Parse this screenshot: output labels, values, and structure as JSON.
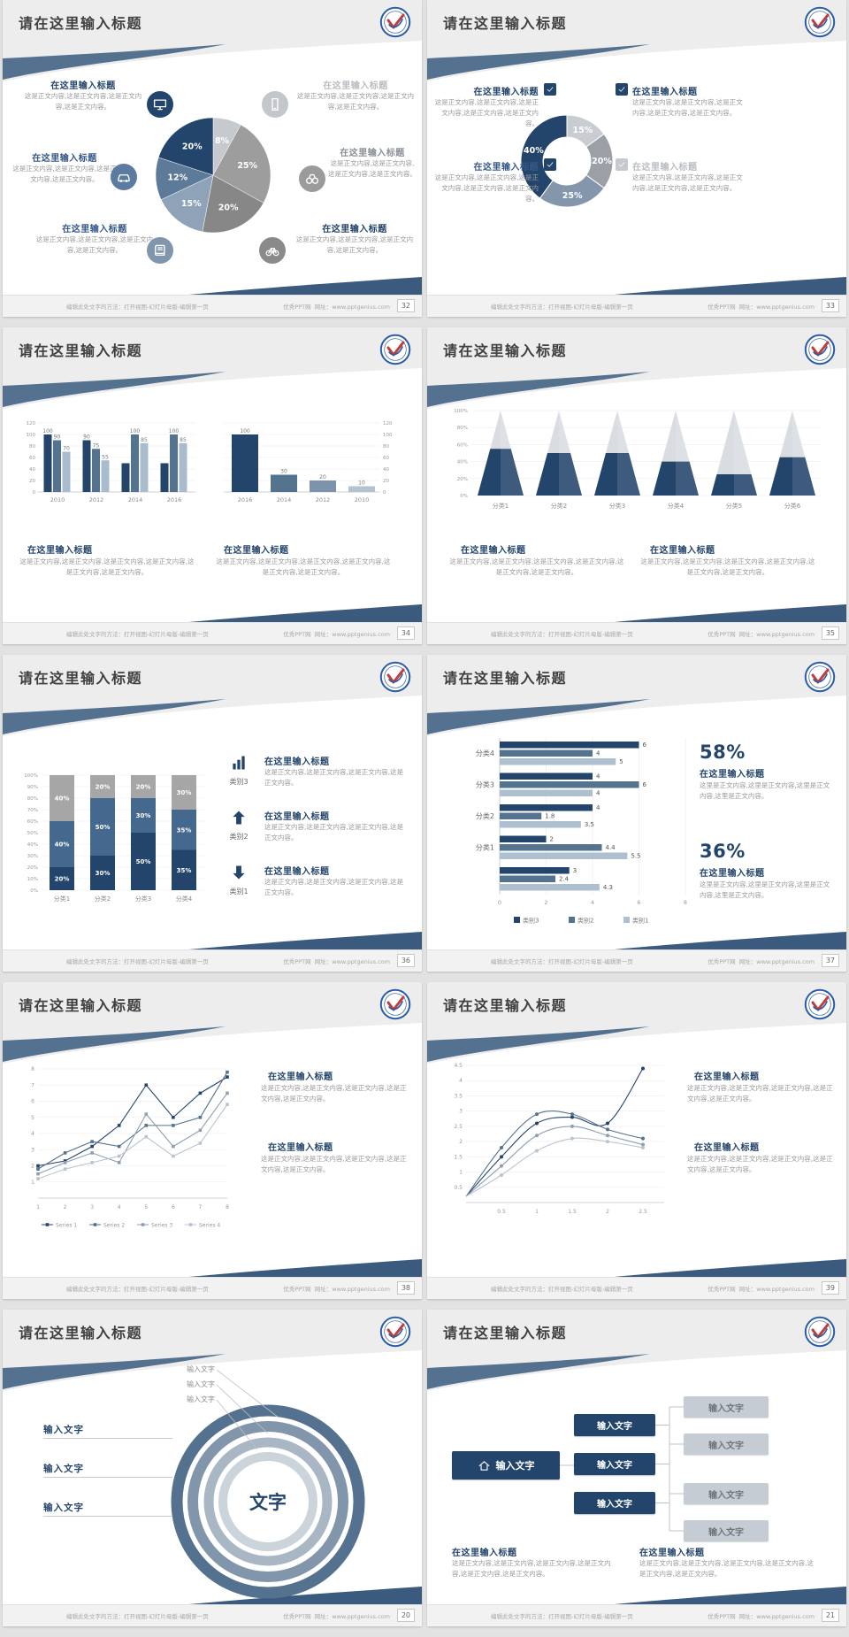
{
  "common": {
    "slide_title": "请在这里输入标题",
    "item_title": "在这里输入标题",
    "body2": "这是正文内容,这是正文内容,这是正文内容,这是正文内容。",
    "body25": "这是正文内容,这是正文内容,这是正文内容,这是正文内容,这是正文内容。",
    "body3": "这是正文内容,这是正文内容,这是正文内容,这是正文内容,这是正文内容,这是正文内容。",
    "body_here": "这里是正文内容,这里是正文内容,这里是正文内容,这里是正文内容。",
    "input_text": "输入文字",
    "center_text": "文字",
    "footer_left": "编辑此处文字的方法：打开视图-幻灯片母版-编辑第一页",
    "footer_site": "优秀PPT网",
    "footer_url": "网址：www.pptgenius.com"
  },
  "pages": [
    "32",
    "33",
    "34",
    "35",
    "36",
    "37",
    "38",
    "39",
    "20",
    "21"
  ],
  "colors": {
    "navy": "#24456b",
    "steel": "#54738f",
    "steel_light": "#8fa3b8",
    "ribbon": "#54728f",
    "wedge": "#3a5a7e",
    "gray_band": "#ededed",
    "pct_58": "58%",
    "pct_36": "36%"
  },
  "slide1": {
    "callouts": [
      {
        "icon": "monitor-icon",
        "icon_bg": "#24456b",
        "title_class": ""
      },
      {
        "icon": "car-icon",
        "icon_bg": "#5b7ba0",
        "title_class": "blue"
      },
      {
        "icon": "book-icon",
        "icon_bg": "#8096ac",
        "title_class": "blue"
      },
      {
        "icon": "phone-icon",
        "icon_bg": "#c3c7cc",
        "title_class": "muted"
      },
      {
        "icon": "binoculars-icon",
        "icon_bg": "#9b9b9b",
        "title_class": "mid"
      },
      {
        "icon": "bicycle-icon",
        "icon_bg": "#8a8a8a",
        "title_class": ""
      }
    ]
  },
  "slide2": {
    "items": [
      {
        "side": "left",
        "checkbox": "#24456b",
        "title_class": ""
      },
      {
        "side": "left",
        "checkbox": "#24456b",
        "title_class": "blue"
      },
      {
        "side": "right",
        "checkbox": "#24456b",
        "title_class": ""
      },
      {
        "side": "right",
        "checkbox": "#c6cacf",
        "title_class": "muted"
      }
    ]
  },
  "slide5": {
    "items": [
      {
        "icon": "bar-chart-icon",
        "label": "类别3"
      },
      {
        "icon": "arrow-up-icon",
        "label": "类别2"
      },
      {
        "icon": "arrow-down-icon",
        "label": "类别1"
      }
    ]
  },
  "slide6": {
    "pct1": "58%",
    "pct2": "36%"
  },
  "chart_data": [
    {
      "id": "pie",
      "slide": 1,
      "type": "pie",
      "labels": [
        "8%",
        "25%",
        "20%",
        "15%",
        "12%",
        "20%"
      ],
      "values": [
        8,
        25,
        20,
        15,
        12,
        20
      ],
      "colors": [
        "#c6cacf",
        "#9d9d9d",
        "#878787",
        "#8fa3b8",
        "#5d7a99",
        "#24456b"
      ],
      "start": "12-oclock",
      "direction": "clockwise"
    },
    {
      "id": "donut",
      "slide": 2,
      "type": "pie",
      "subtype": "donut",
      "inner_ratio": 0.52,
      "labels": [
        "15%",
        "20%",
        "25%",
        "40%"
      ],
      "values": [
        15,
        20,
        25,
        40
      ],
      "colors": [
        "#c9cdd2",
        "#9aa0a6",
        "#8496ab",
        "#24456b"
      ]
    },
    {
      "id": "grouped-bar",
      "slide": 3,
      "type": "bar",
      "categories": [
        "2010",
        "2012",
        "2014",
        "2016"
      ],
      "series": [
        {
          "name": "series-dark",
          "color": "#24456b",
          "values": [
            100,
            90,
            50,
            50
          ],
          "labels": [
            "100",
            "90",
            "",
            ""
          ]
        },
        {
          "name": "series-mid",
          "color": "#54738f",
          "values": [
            90,
            75,
            100,
            100
          ],
          "labels": [
            "90",
            "75",
            "100",
            "100"
          ]
        },
        {
          "name": "series-light",
          "color": "#a9bccd",
          "values": [
            70,
            55,
            85,
            85
          ],
          "labels": [
            "70",
            "55",
            "85",
            "85"
          ]
        }
      ],
      "ylim": [
        0,
        120
      ],
      "yticks": [
        0,
        20,
        40,
        60,
        80,
        100,
        120
      ],
      "grid": true
    },
    {
      "id": "simple-bar",
      "slide": 3,
      "type": "bar",
      "axis_side": "right",
      "categories": [
        "2016",
        "2014",
        "2012",
        "2010"
      ],
      "values": [
        100,
        30,
        20,
        10
      ],
      "labels": [
        "100",
        "30",
        "20",
        "10"
      ],
      "bar_colors": [
        "#24456b",
        "#54738f",
        "#7d93ab",
        "#b3c2d1"
      ],
      "ylim": [
        0,
        120
      ],
      "yticks": [
        0,
        20,
        40,
        60,
        80,
        100,
        120
      ],
      "grid": true
    },
    {
      "id": "cone",
      "slide": 4,
      "type": "area",
      "subtype": "cone-pyramid",
      "categories": [
        "分类1",
        "分类2",
        "分类3",
        "分类4",
        "分类5",
        "分类6"
      ],
      "dark_fraction": [
        0.55,
        0.5,
        0.5,
        0.4,
        0.25,
        0.45
      ],
      "yticks": [
        "0%",
        "20%",
        "40%",
        "60%",
        "80%",
        "100%"
      ],
      "colors": {
        "dark": "#24456b",
        "light": "#d7dbe0"
      }
    },
    {
      "id": "stacked-bar",
      "slide": 5,
      "type": "bar",
      "subtype": "stacked-percent",
      "categories": [
        "分类1",
        "分类2",
        "分类3",
        "分类4"
      ],
      "series": [
        {
          "name": "bottom",
          "color": "#24456b",
          "values": [
            20,
            30,
            50,
            35
          ]
        },
        {
          "name": "middle",
          "color": "#44688e",
          "values": [
            40,
            50,
            30,
            35
          ]
        },
        {
          "name": "top",
          "color": "#a6a6a6",
          "values": [
            40,
            20,
            20,
            30
          ]
        }
      ],
      "yticks": [
        "0%",
        "10%",
        "20%",
        "30%",
        "40%",
        "50%",
        "60%",
        "70%",
        "80%",
        "90%",
        "100%"
      ]
    },
    {
      "id": "h-bar",
      "slide": 6,
      "type": "bar",
      "subtype": "horizontal",
      "groups": [
        {
          "label": "分类4",
          "values": [
            6,
            4,
            5
          ]
        },
        {
          "label": "分类3",
          "values": [
            4,
            6,
            4
          ]
        },
        {
          "label": "分类2",
          "values": [
            4,
            1.8,
            3.5
          ]
        },
        {
          "label": "分类1",
          "values": [
            2,
            4.4,
            5.5
          ]
        },
        {
          "label": "",
          "values": [
            3,
            2.4,
            4.3
          ]
        }
      ],
      "series_colors": [
        "#24456b",
        "#54738f",
        "#aebfd0"
      ],
      "xticks": [
        0,
        2,
        4,
        6,
        8
      ],
      "legend": [
        "类别3",
        "类别2",
        "类别1"
      ],
      "legend_position": "bottom"
    },
    {
      "id": "line",
      "slide": 7,
      "type": "line",
      "x": [
        1,
        2,
        3,
        4,
        5,
        6,
        7,
        8
      ],
      "series": [
        {
          "name": "Series 1",
          "color": "#24456b",
          "values": [
            2,
            2.3,
            3.2,
            4.5,
            7,
            5,
            6.5,
            7.5
          ]
        },
        {
          "name": "Series 2",
          "color": "#54738f",
          "values": [
            1.8,
            2.8,
            3.5,
            3.2,
            4.5,
            4.5,
            5,
            7.8
          ]
        },
        {
          "name": "Series 3",
          "color": "#8e9fb0",
          "values": [
            1.5,
            2.2,
            2.8,
            2.2,
            5.2,
            3.2,
            4.2,
            6.5
          ]
        },
        {
          "name": "Series 4",
          "color": "#b9c4cf",
          "values": [
            1.2,
            1.8,
            2.2,
            2.6,
            3.8,
            2.6,
            3.4,
            5.8
          ]
        }
      ],
      "yticks": [
        1,
        2,
        3,
        4,
        5,
        6,
        7,
        8
      ],
      "xticks": [
        1,
        2,
        3,
        4,
        5,
        6,
        7,
        8
      ],
      "legend_position": "bottom",
      "grid": true
    },
    {
      "id": "smooth-line",
      "slide": 8,
      "type": "line",
      "subtype": "smooth",
      "x": [
        0,
        0.5,
        1,
        1.5,
        2,
        2.5
      ],
      "series": [
        {
          "name": "curve-1",
          "color": "#24456b",
          "values": [
            0.2,
            1.5,
            2.6,
            2.8,
            2.6,
            4.4
          ]
        },
        {
          "name": "curve-2",
          "color": "#54738f",
          "values": [
            0.2,
            1.8,
            2.9,
            2.9,
            2.4,
            2.1
          ]
        },
        {
          "name": "curve-3",
          "color": "#8e9fb0",
          "values": [
            0.2,
            1.2,
            2.2,
            2.5,
            2.2,
            1.9
          ]
        },
        {
          "name": "curve-4",
          "color": "#b9c4cf",
          "values": [
            0.2,
            0.9,
            1.7,
            2.1,
            2.0,
            1.8
          ]
        }
      ],
      "yticks": [
        0.5,
        1,
        1.5,
        2,
        2.5,
        3,
        3.5,
        4,
        4.5
      ],
      "xticks": [
        0.5,
        1,
        1.5,
        2,
        2.5
      ],
      "grid": true
    }
  ],
  "slide9": {
    "ring_colors": [
      "#54728f",
      "#8195ab",
      "#a9b7c5",
      "#ccd4db"
    ],
    "top_labels": [
      "输入文字",
      "输入文字",
      "输入文字"
    ],
    "left_labels": [
      "输入文字",
      "输入文字",
      "输入文字"
    ]
  },
  "slide10": {
    "home_label": "输入文字",
    "center_buttons": [
      "输入文字",
      "输入文字",
      "输入文字"
    ],
    "right_buttons": [
      "输入文字",
      "输入文字",
      "输入文字",
      "输入文字"
    ]
  }
}
